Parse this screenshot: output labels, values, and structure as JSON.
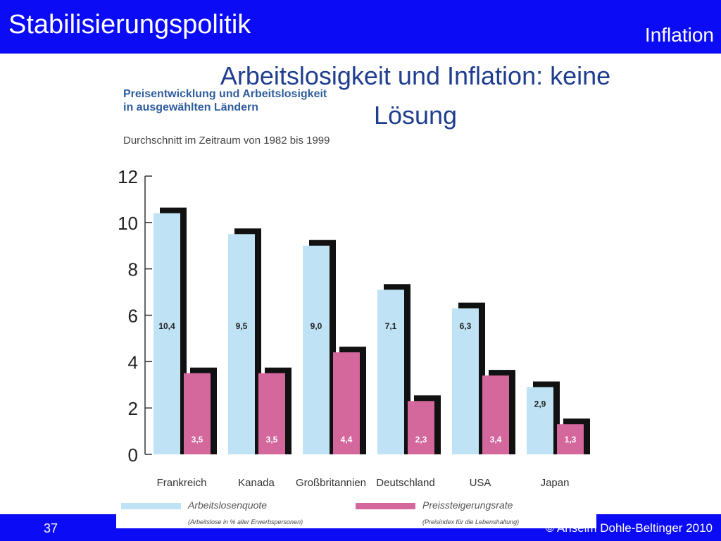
{
  "header": {
    "title": "Stabilisierungspolitik",
    "section": "Inflation"
  },
  "slide": {
    "heading_line1": "Arbeitslosigkeit und Inflation: keine",
    "heading_line2": "Lösung"
  },
  "footer": {
    "page": "37",
    "copyright": "© Anselm Dohle-Beltinger 2010"
  },
  "colors": {
    "bar_blue": "#bfe2f5",
    "bar_pink": "#d4689c",
    "shadow": "#111111",
    "bar_fill_text": "#ffffff"
  },
  "chart_data": {
    "type": "bar",
    "title_line1": "Preisentwicklung und Arbeitslosigkeit",
    "title_line2": "in ausgewählten Ländern",
    "subtitle": "Durchschnitt im Zeitraum von 1982 bis 1999",
    "categories": [
      "Frankreich",
      "Kanada",
      "Großbritannien",
      "Deutschland",
      "USA",
      "Japan"
    ],
    "series": [
      {
        "name": "Arbeitslosenquote",
        "note": "(Arbeitslose in % aller Erwerbspersonen)",
        "values": [
          10.4,
          9.5,
          9.0,
          7.1,
          6.3,
          2.9
        ],
        "labels": [
          "10,4",
          "9,5",
          "9,0",
          "7,1",
          "6,3",
          "2,9"
        ]
      },
      {
        "name": "Preissteigerungsrate",
        "note": "(Preisindex für die Lebenshaltung)",
        "values": [
          3.5,
          3.5,
          4.4,
          2.3,
          3.4,
          1.3
        ],
        "labels": [
          "3,5",
          "3,5",
          "4,4",
          "2,3",
          "3,4",
          "1,3"
        ]
      }
    ],
    "y_ticks": [
      "0",
      "2",
      "4",
      "6",
      "8",
      "10",
      "12"
    ],
    "ylim": [
      0,
      12
    ],
    "grid": false,
    "legend_position": "bottom"
  }
}
